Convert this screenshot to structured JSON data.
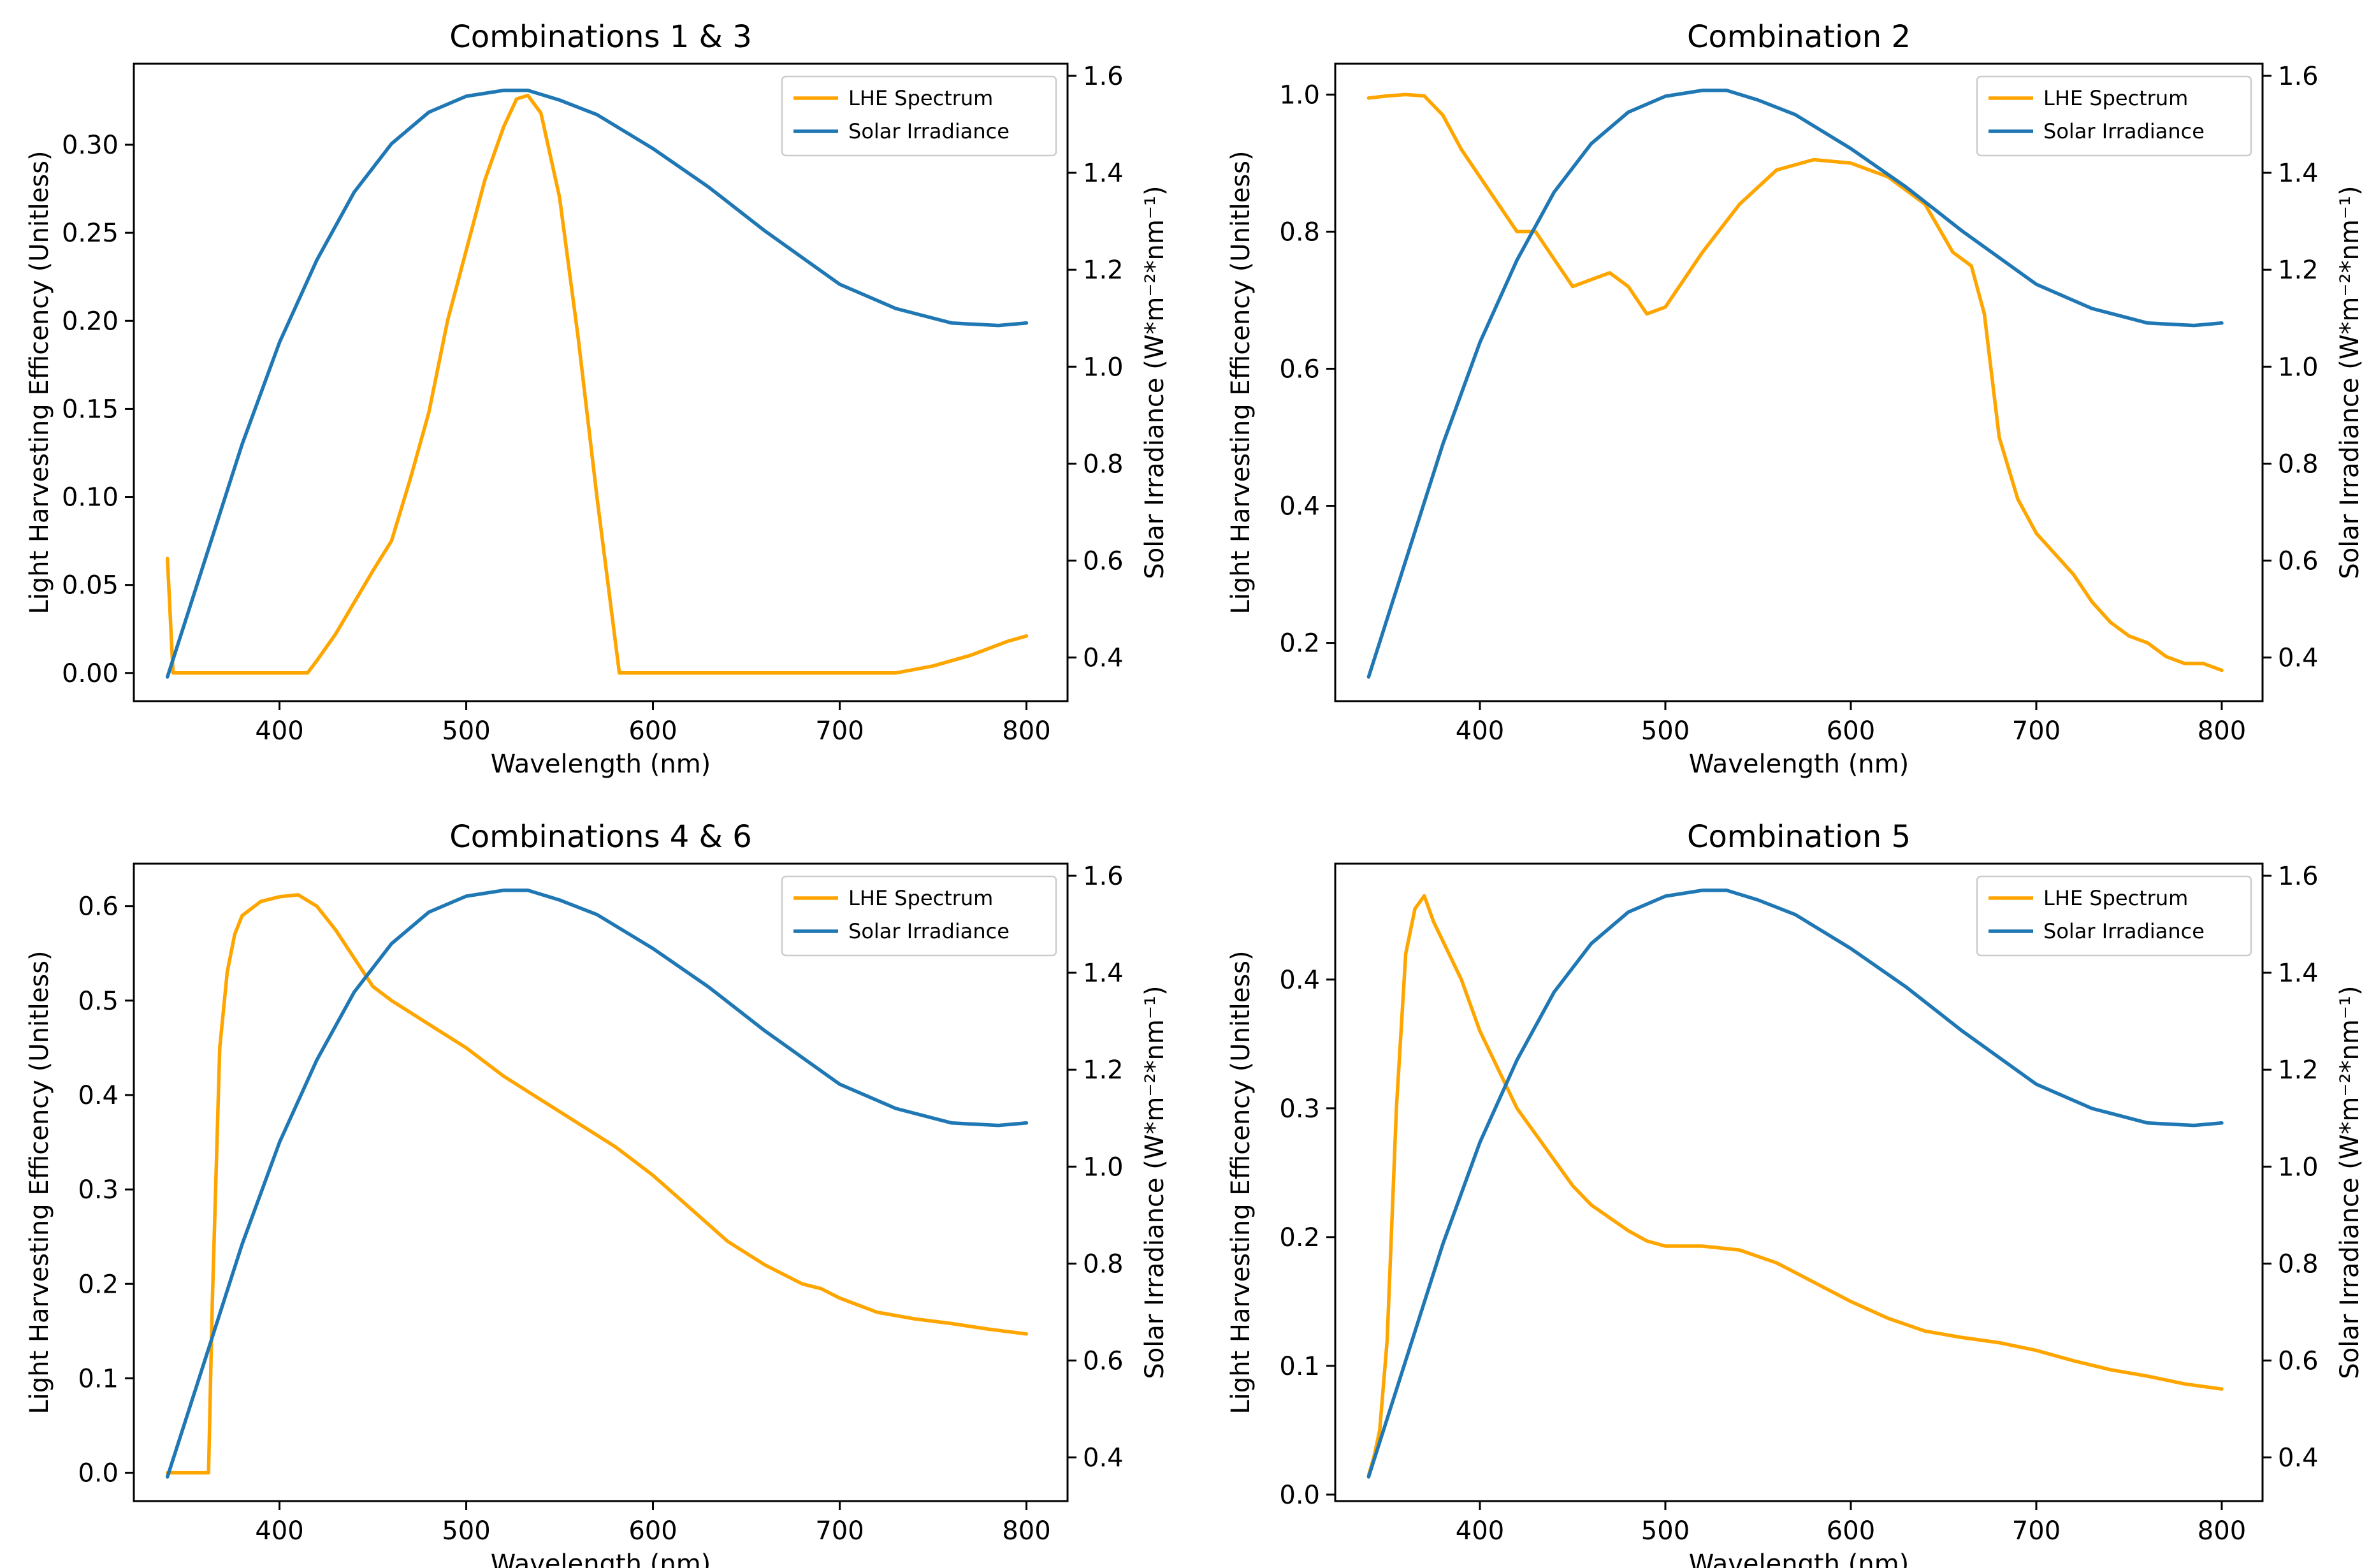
{
  "figure": {
    "background": "#ffffff"
  },
  "styles": {
    "lhe_color": "#FFA500",
    "solar_color": "#1F77B4",
    "axis_color": "#000000",
    "legend_border": "#cccccc"
  },
  "chart_data": [
    {
      "type": "line",
      "title": "Combinations 1 & 3",
      "xlabel": "Wavelength (nm)",
      "ylabel_left": "Light Harvesting Efficency (Unitless)",
      "ylabel_right": "Solar Irradiance (W*m⁻²*nm⁻¹)",
      "xlim": [
        322,
        822
      ],
      "ylim_left": [
        -0.016,
        0.346
      ],
      "ylim_right": [
        0.31,
        1.625
      ],
      "xticks": [
        400,
        500,
        600,
        700,
        800
      ],
      "yticks_left": [
        0.0,
        0.05,
        0.1,
        0.15,
        0.2,
        0.25,
        0.3
      ],
      "ytick_labels_left": [
        "0.00",
        "0.05",
        "0.10",
        "0.15",
        "0.20",
        "0.25",
        "0.30"
      ],
      "yticks_right": [
        0.4,
        0.6,
        0.8,
        1.0,
        1.2,
        1.4,
        1.6
      ],
      "ytick_labels_right": [
        "0.4",
        "0.6",
        "0.8",
        "1.0",
        "1.2",
        "1.4",
        "1.6"
      ],
      "legend": {
        "position": "upper right",
        "entries": [
          "LHE Spectrum",
          "Solar Irradiance"
        ]
      },
      "series": [
        {
          "name": "LHE Spectrum",
          "axis": "left",
          "x": [
            340,
            343,
            350,
            380,
            415,
            420,
            430,
            440,
            450,
            460,
            470,
            480,
            490,
            500,
            510,
            520,
            527,
            533,
            540,
            550,
            560,
            570,
            582,
            600,
            650,
            700,
            730,
            750,
            770,
            790,
            800
          ],
          "y": [
            0.065,
            0.0,
            0.0,
            0.0,
            0.0,
            0.007,
            0.022,
            0.04,
            0.058,
            0.075,
            0.11,
            0.148,
            0.2,
            0.24,
            0.28,
            0.31,
            0.326,
            0.328,
            0.318,
            0.27,
            0.19,
            0.1,
            0.0,
            0.0,
            0.0,
            0.0,
            0.0,
            0.004,
            0.01,
            0.018,
            0.021
          ]
        },
        {
          "name": "Solar Irradiance",
          "axis": "right",
          "x": [
            340,
            360,
            380,
            400,
            420,
            440,
            460,
            480,
            500,
            520,
            533,
            550,
            570,
            600,
            630,
            660,
            700,
            730,
            760,
            785,
            800
          ],
          "y": [
            0.36,
            0.6,
            0.84,
            1.05,
            1.22,
            1.36,
            1.46,
            1.525,
            1.558,
            1.57,
            1.57,
            1.55,
            1.52,
            1.45,
            1.37,
            1.28,
            1.17,
            1.12,
            1.09,
            1.085,
            1.09
          ]
        }
      ]
    },
    {
      "type": "line",
      "title": "Combination 2",
      "xlabel": "Wavelength (nm)",
      "ylabel_left": "Light Harvesting Efficency (Unitless)",
      "ylabel_right": "Solar Irradiance (W*m⁻²*nm⁻¹)",
      "xlim": [
        322,
        822
      ],
      "ylim_left": [
        0.115,
        1.045
      ],
      "ylim_right": [
        0.31,
        1.625
      ],
      "xticks": [
        400,
        500,
        600,
        700,
        800
      ],
      "yticks_left": [
        0.2,
        0.4,
        0.6,
        0.8,
        1.0
      ],
      "ytick_labels_left": [
        "0.2",
        "0.4",
        "0.6",
        "0.8",
        "1.0"
      ],
      "yticks_right": [
        0.4,
        0.6,
        0.8,
        1.0,
        1.2,
        1.4,
        1.6
      ],
      "ytick_labels_right": [
        "0.4",
        "0.6",
        "0.8",
        "1.0",
        "1.2",
        "1.4",
        "1.6"
      ],
      "legend": {
        "position": "upper right",
        "entries": [
          "LHE Spectrum",
          "Solar Irradiance"
        ]
      },
      "series": [
        {
          "name": "LHE Spectrum",
          "axis": "left",
          "x": [
            340,
            350,
            360,
            370,
            380,
            390,
            400,
            410,
            420,
            430,
            440,
            450,
            460,
            470,
            480,
            490,
            500,
            510,
            520,
            540,
            560,
            580,
            600,
            620,
            640,
            655,
            665,
            672,
            680,
            690,
            700,
            710,
            720,
            730,
            740,
            750,
            760,
            770,
            780,
            790,
            800
          ],
          "y": [
            0.995,
            0.998,
            1.0,
            0.998,
            0.97,
            0.92,
            0.88,
            0.84,
            0.8,
            0.8,
            0.76,
            0.72,
            0.73,
            0.74,
            0.72,
            0.68,
            0.69,
            0.73,
            0.77,
            0.84,
            0.89,
            0.905,
            0.9,
            0.88,
            0.84,
            0.77,
            0.75,
            0.68,
            0.5,
            0.41,
            0.36,
            0.33,
            0.3,
            0.26,
            0.23,
            0.21,
            0.2,
            0.18,
            0.17,
            0.17,
            0.16
          ]
        },
        {
          "name": "Solar Irradiance",
          "axis": "right",
          "x": [
            340,
            360,
            380,
            400,
            420,
            440,
            460,
            480,
            500,
            520,
            533,
            550,
            570,
            600,
            630,
            660,
            700,
            730,
            760,
            785,
            800
          ],
          "y": [
            0.36,
            0.6,
            0.84,
            1.05,
            1.22,
            1.36,
            1.46,
            1.525,
            1.558,
            1.57,
            1.57,
            1.55,
            1.52,
            1.45,
            1.37,
            1.28,
            1.17,
            1.12,
            1.09,
            1.085,
            1.09
          ]
        }
      ]
    },
    {
      "type": "line",
      "title": "Combinations 4 & 6",
      "xlabel": "Wavelength (nm)",
      "ylabel_left": "Light Harvesting Efficency (Unitless)",
      "ylabel_right": "Solar Irradiance (W*m⁻²*nm⁻¹)",
      "xlim": [
        322,
        822
      ],
      "ylim_left": [
        -0.03,
        0.645
      ],
      "ylim_right": [
        0.31,
        1.625
      ],
      "xticks": [
        400,
        500,
        600,
        700,
        800
      ],
      "yticks_left": [
        0.0,
        0.1,
        0.2,
        0.3,
        0.4,
        0.5,
        0.6
      ],
      "ytick_labels_left": [
        "0.0",
        "0.1",
        "0.2",
        "0.3",
        "0.4",
        "0.5",
        "0.6"
      ],
      "yticks_right": [
        0.4,
        0.6,
        0.8,
        1.0,
        1.2,
        1.4,
        1.6
      ],
      "ytick_labels_right": [
        "0.4",
        "0.6",
        "0.8",
        "1.0",
        "1.2",
        "1.4",
        "1.6"
      ],
      "legend": {
        "position": "upper right",
        "entries": [
          "LHE Spectrum",
          "Solar Irradiance"
        ]
      },
      "series": [
        {
          "name": "LHE Spectrum",
          "axis": "left",
          "x": [
            340,
            350,
            362,
            364,
            368,
            372,
            376,
            380,
            390,
            400,
            410,
            420,
            430,
            440,
            450,
            460,
            480,
            500,
            520,
            540,
            560,
            580,
            600,
            620,
            640,
            660,
            680,
            690,
            700,
            720,
            740,
            760,
            780,
            800
          ],
          "y": [
            0.0,
            0.0,
            0.0,
            0.18,
            0.45,
            0.53,
            0.57,
            0.59,
            0.605,
            0.61,
            0.612,
            0.6,
            0.575,
            0.545,
            0.515,
            0.5,
            0.475,
            0.45,
            0.42,
            0.395,
            0.37,
            0.345,
            0.315,
            0.28,
            0.245,
            0.22,
            0.2,
            0.195,
            0.185,
            0.17,
            0.163,
            0.158,
            0.152,
            0.147
          ]
        },
        {
          "name": "Solar Irradiance",
          "axis": "right",
          "x": [
            340,
            360,
            380,
            400,
            420,
            440,
            460,
            480,
            500,
            520,
            533,
            550,
            570,
            600,
            630,
            660,
            700,
            730,
            760,
            785,
            800
          ],
          "y": [
            0.36,
            0.6,
            0.84,
            1.05,
            1.22,
            1.36,
            1.46,
            1.525,
            1.558,
            1.57,
            1.57,
            1.55,
            1.52,
            1.45,
            1.37,
            1.28,
            1.17,
            1.12,
            1.09,
            1.085,
            1.09
          ]
        }
      ]
    },
    {
      "type": "line",
      "title": "Combination 5",
      "xlabel": "Wavelength (nm)",
      "ylabel_left": "Light Harvesting Efficency (Unitless)",
      "ylabel_right": "Solar Irradiance (W*m⁻²*nm⁻¹)",
      "xlim": [
        322,
        822
      ],
      "ylim_left": [
        -0.005,
        0.49
      ],
      "ylim_right": [
        0.31,
        1.625
      ],
      "xticks": [
        400,
        500,
        600,
        700,
        800
      ],
      "yticks_left": [
        0.0,
        0.1,
        0.2,
        0.3,
        0.4
      ],
      "ytick_labels_left": [
        "0.0",
        "0.1",
        "0.2",
        "0.3",
        "0.4"
      ],
      "yticks_right": [
        0.4,
        0.6,
        0.8,
        1.0,
        1.2,
        1.4,
        1.6
      ],
      "ytick_labels_right": [
        "0.4",
        "0.6",
        "0.8",
        "1.0",
        "1.2",
        "1.4",
        "1.6"
      ],
      "legend": {
        "position": "upper right",
        "entries": [
          "LHE Spectrum",
          "Solar Irradiance"
        ]
      },
      "series": [
        {
          "name": "LHE Spectrum",
          "axis": "left",
          "x": [
            340,
            343,
            346,
            350,
            355,
            360,
            365,
            370,
            375,
            380,
            390,
            400,
            410,
            420,
            430,
            440,
            450,
            460,
            470,
            480,
            490,
            500,
            520,
            540,
            560,
            580,
            600,
            620,
            640,
            660,
            680,
            700,
            720,
            740,
            760,
            780,
            800
          ],
          "y": [
            0.015,
            0.03,
            0.05,
            0.12,
            0.3,
            0.42,
            0.455,
            0.465,
            0.445,
            0.43,
            0.4,
            0.36,
            0.33,
            0.3,
            0.28,
            0.26,
            0.24,
            0.225,
            0.215,
            0.205,
            0.197,
            0.193,
            0.193,
            0.19,
            0.18,
            0.165,
            0.15,
            0.137,
            0.127,
            0.122,
            0.118,
            0.112,
            0.104,
            0.097,
            0.092,
            0.086,
            0.082
          ]
        },
        {
          "name": "Solar Irradiance",
          "axis": "right",
          "x": [
            340,
            360,
            380,
            400,
            420,
            440,
            460,
            480,
            500,
            520,
            533,
            550,
            570,
            600,
            630,
            660,
            700,
            730,
            760,
            785,
            800
          ],
          "y": [
            0.36,
            0.6,
            0.84,
            1.05,
            1.22,
            1.36,
            1.46,
            1.525,
            1.558,
            1.57,
            1.57,
            1.55,
            1.52,
            1.45,
            1.37,
            1.28,
            1.17,
            1.12,
            1.09,
            1.085,
            1.09
          ]
        }
      ]
    }
  ]
}
